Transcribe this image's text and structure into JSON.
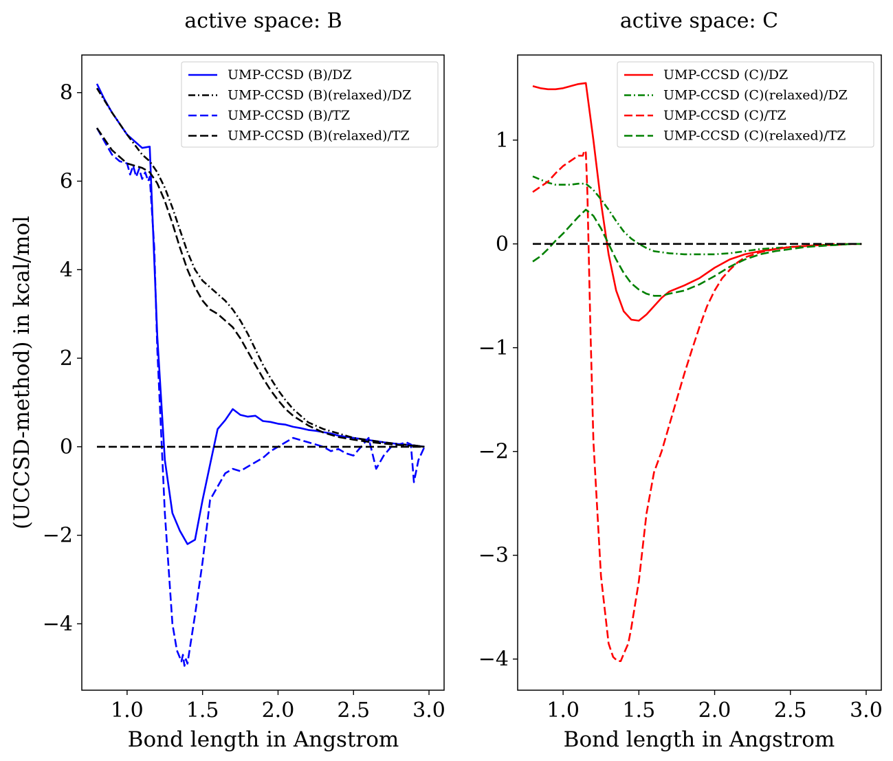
{
  "chart_data": [
    {
      "type": "line",
      "title": "active space: B",
      "xlabel": "Bond length in Angstrom",
      "ylabel": "(UCCSD-method) in kcal/mol",
      "xlim": [
        0.7,
        3.1
      ],
      "ylim": [
        -5.5,
        8.85
      ],
      "xticks": [
        1.0,
        1.5,
        2.0,
        2.5,
        3.0
      ],
      "xtick_labels": [
        "1.0",
        "1.5",
        "2.0",
        "2.5",
        "3.0"
      ],
      "yticks": [
        -4,
        -2,
        0,
        2,
        4,
        6,
        8
      ],
      "ytick_labels": [
        "−4",
        "−2",
        "0",
        "2",
        "4",
        "6",
        "8"
      ],
      "legend_position": "top-right",
      "series": [
        {
          "name": "UMP-CCSD (B)/DZ",
          "color": "#0000ff",
          "dash": "solid",
          "x": [
            0.8,
            0.85,
            0.9,
            0.95,
            1.0,
            1.05,
            1.1,
            1.15,
            1.2,
            1.25,
            1.3,
            1.35,
            1.4,
            1.45,
            1.5,
            1.55,
            1.6,
            1.65,
            1.7,
            1.75,
            1.8,
            1.85,
            1.9,
            1.95,
            2.0,
            2.05,
            2.1,
            2.15,
            2.2,
            2.25,
            2.3,
            2.35,
            2.4,
            2.5,
            2.6,
            2.7,
            2.8,
            2.9,
            2.97
          ],
          "y": [
            8.2,
            7.85,
            7.55,
            7.3,
            7.05,
            6.9,
            6.75,
            6.78,
            2.5,
            -0.3,
            -1.5,
            -1.9,
            -2.2,
            -2.1,
            -1.2,
            -0.4,
            0.4,
            0.6,
            0.85,
            0.72,
            0.68,
            0.7,
            0.58,
            0.56,
            0.52,
            0.5,
            0.45,
            0.42,
            0.38,
            0.36,
            0.33,
            0.3,
            0.25,
            0.2,
            0.15,
            0.1,
            0.06,
            0.03,
            0.0
          ]
        },
        {
          "name": "UMP-CCSD (B)(relaxed)/DZ",
          "color": "#000000",
          "dash": "dashdot",
          "x": [
            0.8,
            0.9,
            1.0,
            1.1,
            1.15,
            1.2,
            1.25,
            1.3,
            1.35,
            1.4,
            1.45,
            1.5,
            1.55,
            1.6,
            1.65,
            1.7,
            1.75,
            1.8,
            1.85,
            1.9,
            1.95,
            2.0,
            2.05,
            2.1,
            2.2,
            2.3,
            2.4,
            2.5,
            2.6,
            2.7,
            2.8,
            2.9,
            2.97
          ],
          "y": [
            8.1,
            7.55,
            7.05,
            6.6,
            6.45,
            6.2,
            5.85,
            5.4,
            4.9,
            4.4,
            4.0,
            3.75,
            3.6,
            3.45,
            3.3,
            3.1,
            2.85,
            2.55,
            2.2,
            1.85,
            1.55,
            1.28,
            1.05,
            0.85,
            0.55,
            0.4,
            0.3,
            0.2,
            0.15,
            0.1,
            0.06,
            0.03,
            0.0
          ]
        },
        {
          "name": "UMP-CCSD (B)/TZ",
          "color": "#0000ff",
          "dash": "dashed",
          "x": [
            0.8,
            0.85,
            0.9,
            0.95,
            1.0,
            1.02,
            1.04,
            1.06,
            1.08,
            1.1,
            1.12,
            1.14,
            1.15,
            1.18,
            1.2,
            1.25,
            1.3,
            1.33,
            1.36,
            1.37,
            1.38,
            1.39,
            1.4,
            1.45,
            1.5,
            1.55,
            1.6,
            1.65,
            1.7,
            1.75,
            1.8,
            1.85,
            1.9,
            1.95,
            2.0,
            2.05,
            2.1,
            2.15,
            2.2,
            2.25,
            2.3,
            2.35,
            2.4,
            2.45,
            2.5,
            2.55,
            2.6,
            2.65,
            2.7,
            2.75,
            2.8,
            2.85,
            2.88,
            2.9,
            2.93,
            2.97
          ],
          "y": [
            7.2,
            6.9,
            6.6,
            6.45,
            6.4,
            6.15,
            6.35,
            6.1,
            6.28,
            6.05,
            6.2,
            6.0,
            6.1,
            4.5,
            2.2,
            -1.5,
            -4.0,
            -4.6,
            -4.85,
            -4.7,
            -4.95,
            -4.8,
            -4.9,
            -3.8,
            -2.6,
            -1.2,
            -0.9,
            -0.6,
            -0.5,
            -0.55,
            -0.45,
            -0.35,
            -0.25,
            -0.1,
            0.0,
            0.1,
            0.2,
            0.15,
            0.1,
            0.05,
            0.0,
            -0.1,
            -0.05,
            -0.15,
            -0.2,
            0.0,
            0.2,
            -0.5,
            -0.2,
            0.0,
            0.05,
            0.1,
            0.05,
            -0.8,
            -0.3,
            0.0
          ]
        },
        {
          "name": "UMP-CCSD (B)(relaxed)/TZ",
          "color": "#000000",
          "dash": "dashed",
          "x": [
            0.8,
            0.9,
            1.0,
            1.1,
            1.15,
            1.2,
            1.25,
            1.3,
            1.35,
            1.4,
            1.45,
            1.5,
            1.55,
            1.6,
            1.65,
            1.7,
            1.75,
            1.8,
            1.85,
            1.9,
            1.95,
            2.0,
            2.05,
            2.1,
            2.2,
            2.3,
            2.4,
            2.5,
            2.6,
            2.7,
            2.8,
            2.9,
            2.97
          ],
          "y": [
            7.2,
            6.7,
            6.4,
            6.3,
            6.2,
            5.95,
            5.55,
            5.05,
            4.5,
            4.0,
            3.6,
            3.3,
            3.1,
            3.0,
            2.85,
            2.7,
            2.45,
            2.15,
            1.85,
            1.55,
            1.28,
            1.05,
            0.85,
            0.7,
            0.48,
            0.32,
            0.22,
            0.16,
            0.11,
            0.07,
            0.04,
            0.02,
            0.0
          ]
        },
        {
          "name": "zero",
          "color": "#000000",
          "dash": "dashed",
          "in_legend": false,
          "x": [
            0.8,
            2.97
          ],
          "y": [
            0,
            0
          ]
        }
      ]
    },
    {
      "type": "line",
      "title": "active space: C",
      "xlabel": "Bond length in Angstrom",
      "ylabel": "",
      "xlim": [
        0.7,
        3.1
      ],
      "ylim": [
        -4.3,
        1.82
      ],
      "xticks": [
        1.0,
        1.5,
        2.0,
        2.5,
        3.0
      ],
      "xtick_labels": [
        "1.0",
        "1.5",
        "2.0",
        "2.5",
        "3.0"
      ],
      "yticks": [
        -4,
        -3,
        -2,
        -1,
        0,
        1
      ],
      "ytick_labels": [
        "−4",
        "−3",
        "−2",
        "−1",
        "0",
        "1"
      ],
      "legend_position": "top-right",
      "series": [
        {
          "name": "UMP-CCSD (C)/DZ",
          "color": "#ff0000",
          "dash": "solid",
          "x": [
            0.8,
            0.85,
            0.9,
            0.95,
            1.0,
            1.05,
            1.1,
            1.15,
            1.2,
            1.25,
            1.3,
            1.35,
            1.4,
            1.45,
            1.5,
            1.55,
            1.6,
            1.65,
            1.7,
            1.75,
            1.8,
            1.9,
            2.0,
            2.1,
            2.2,
            2.3,
            2.4,
            2.5,
            2.6,
            2.7,
            2.8,
            2.9,
            2.97
          ],
          "y": [
            1.52,
            1.5,
            1.49,
            1.49,
            1.5,
            1.52,
            1.54,
            1.55,
            1.0,
            0.4,
            -0.1,
            -0.45,
            -0.65,
            -0.73,
            -0.74,
            -0.68,
            -0.6,
            -0.52,
            -0.46,
            -0.43,
            -0.4,
            -0.33,
            -0.23,
            -0.15,
            -0.1,
            -0.07,
            -0.05,
            -0.03,
            -0.02,
            -0.01,
            -0.01,
            0.0,
            0.0
          ]
        },
        {
          "name": "UMP-CCSD (C)(relaxed)/DZ",
          "color": "#008000",
          "dash": "dashdot",
          "x": [
            0.8,
            0.85,
            0.9,
            0.95,
            1.0,
            1.05,
            1.1,
            1.15,
            1.2,
            1.25,
            1.3,
            1.35,
            1.4,
            1.45,
            1.5,
            1.55,
            1.6,
            1.7,
            1.8,
            1.9,
            2.0,
            2.1,
            2.2,
            2.3,
            2.4,
            2.5,
            2.6,
            2.7,
            2.8,
            2.9,
            2.97
          ],
          "y": [
            0.65,
            0.62,
            0.59,
            0.57,
            0.57,
            0.57,
            0.58,
            0.58,
            0.52,
            0.43,
            0.33,
            0.22,
            0.12,
            0.05,
            0.0,
            -0.04,
            -0.07,
            -0.09,
            -0.1,
            -0.1,
            -0.1,
            -0.09,
            -0.07,
            -0.05,
            -0.04,
            -0.03,
            -0.02,
            -0.01,
            -0.01,
            0.0,
            0.0
          ]
        },
        {
          "name": "UMP-CCSD (C)/TZ",
          "color": "#ff0000",
          "dash": "dashed",
          "x": [
            0.8,
            0.85,
            0.9,
            0.95,
            1.0,
            1.05,
            1.1,
            1.13,
            1.14,
            1.15,
            1.16,
            1.18,
            1.2,
            1.25,
            1.3,
            1.33,
            1.36,
            1.38,
            1.4,
            1.43,
            1.45,
            1.5,
            1.55,
            1.6,
            1.65,
            1.7,
            1.75,
            1.8,
            1.85,
            1.9,
            1.95,
            2.0,
            2.05,
            2.1,
            2.15,
            2.2,
            2.3,
            2.4,
            2.5,
            2.6,
            2.7,
            2.8,
            2.9,
            2.97
          ],
          "y": [
            0.5,
            0.55,
            0.6,
            0.68,
            0.75,
            0.8,
            0.85,
            0.85,
            0.9,
            0.88,
            0.5,
            -0.8,
            -1.9,
            -3.2,
            -3.85,
            -3.98,
            -4.02,
            -4.02,
            -3.95,
            -3.85,
            -3.7,
            -3.25,
            -2.6,
            -2.2,
            -2.0,
            -1.75,
            -1.5,
            -1.25,
            -1.02,
            -0.8,
            -0.6,
            -0.45,
            -0.33,
            -0.25,
            -0.18,
            -0.13,
            -0.08,
            -0.05,
            -0.03,
            -0.02,
            -0.01,
            0.0,
            0.0,
            0.0
          ]
        },
        {
          "name": "UMP-CCSD (C)(relaxed)/TZ",
          "color": "#008000",
          "dash": "dashed",
          "x": [
            0.8,
            0.85,
            0.9,
            0.95,
            1.0,
            1.05,
            1.1,
            1.15,
            1.2,
            1.25,
            1.3,
            1.35,
            1.4,
            1.45,
            1.5,
            1.55,
            1.6,
            1.65,
            1.7,
            1.8,
            1.9,
            2.0,
            2.1,
            2.2,
            2.3,
            2.4,
            2.5,
            2.6,
            2.7,
            2.8,
            2.9,
            2.97
          ],
          "y": [
            -0.17,
            -0.12,
            -0.05,
            0.03,
            0.1,
            0.18,
            0.26,
            0.33,
            0.27,
            0.15,
            0.0,
            -0.15,
            -0.28,
            -0.38,
            -0.44,
            -0.48,
            -0.5,
            -0.5,
            -0.48,
            -0.45,
            -0.39,
            -0.31,
            -0.22,
            -0.15,
            -0.1,
            -0.07,
            -0.05,
            -0.03,
            -0.02,
            -0.01,
            0.0,
            0.0
          ]
        },
        {
          "name": "zero",
          "color": "#000000",
          "dash": "dashed",
          "in_legend": false,
          "x": [
            0.8,
            2.97
          ],
          "y": [
            0,
            0
          ]
        }
      ]
    }
  ]
}
